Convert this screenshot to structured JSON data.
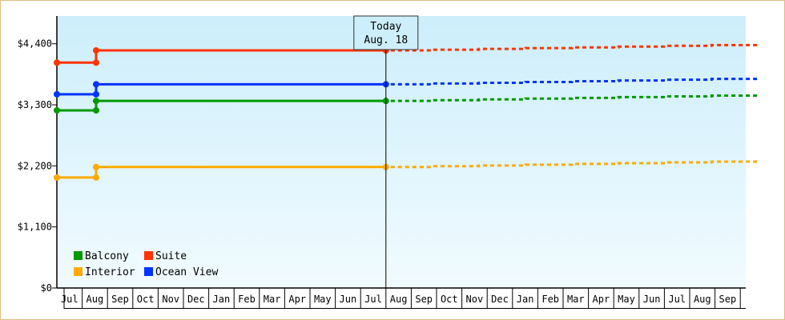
{
  "chart_data": {
    "type": "line",
    "title": "",
    "xlabel": "",
    "ylabel": "",
    "ylim": [
      0,
      4900
    ],
    "yticks": [
      {
        "value": 0,
        "label": "$0"
      },
      {
        "value": 1100,
        "label": "$1,100"
      },
      {
        "value": 2200,
        "label": "$2,200"
      },
      {
        "value": 3300,
        "label": "$3,300"
      },
      {
        "value": 4400,
        "label": "$4,400"
      }
    ],
    "x_months": [
      "Jul",
      "Aug",
      "Sep",
      "Oct",
      "Nov",
      "Dec",
      "Jan",
      "Feb",
      "Mar",
      "Apr",
      "May",
      "Jun",
      "Jul",
      "Aug",
      "Sep",
      "Oct",
      "Nov",
      "Dec",
      "Jan",
      "Feb",
      "Mar",
      "Apr",
      "May",
      "Jun",
      "Jul",
      "Aug",
      "Sep"
    ],
    "today_marker": {
      "line1": "Today",
      "line2": "Aug. 18",
      "x": 13.0
    },
    "grid": false,
    "legend_position": "bottom-left",
    "series": [
      {
        "name": "Balcony",
        "color": "#009900",
        "actual": [
          [
            0,
            3200
          ],
          [
            1.55,
            3200
          ],
          [
            1.55,
            3370
          ],
          [
            13.0,
            3370
          ]
        ],
        "forecast": [
          [
            13.0,
            3370
          ],
          [
            27.7,
            3480
          ]
        ]
      },
      {
        "name": "Interior",
        "color": "#ffaa00",
        "actual": [
          [
            0,
            1990
          ],
          [
            1.55,
            1990
          ],
          [
            1.55,
            2180
          ],
          [
            13.0,
            2180
          ]
        ],
        "forecast": [
          [
            13.0,
            2180
          ],
          [
            27.7,
            2290
          ]
        ]
      },
      {
        "name": "Suite",
        "color": "#ff3300",
        "actual": [
          [
            0,
            4060
          ],
          [
            1.55,
            4060
          ],
          [
            1.55,
            4280
          ],
          [
            13.0,
            4280
          ]
        ],
        "forecast": [
          [
            13.0,
            4280
          ],
          [
            27.7,
            4390
          ]
        ]
      },
      {
        "name": "Ocean View",
        "color": "#0033ff",
        "actual": [
          [
            0,
            3490
          ],
          [
            1.55,
            3490
          ],
          [
            1.55,
            3670
          ],
          [
            13.0,
            3670
          ]
        ],
        "forecast": [
          [
            13.0,
            3670
          ],
          [
            27.7,
            3780
          ]
        ]
      }
    ]
  }
}
